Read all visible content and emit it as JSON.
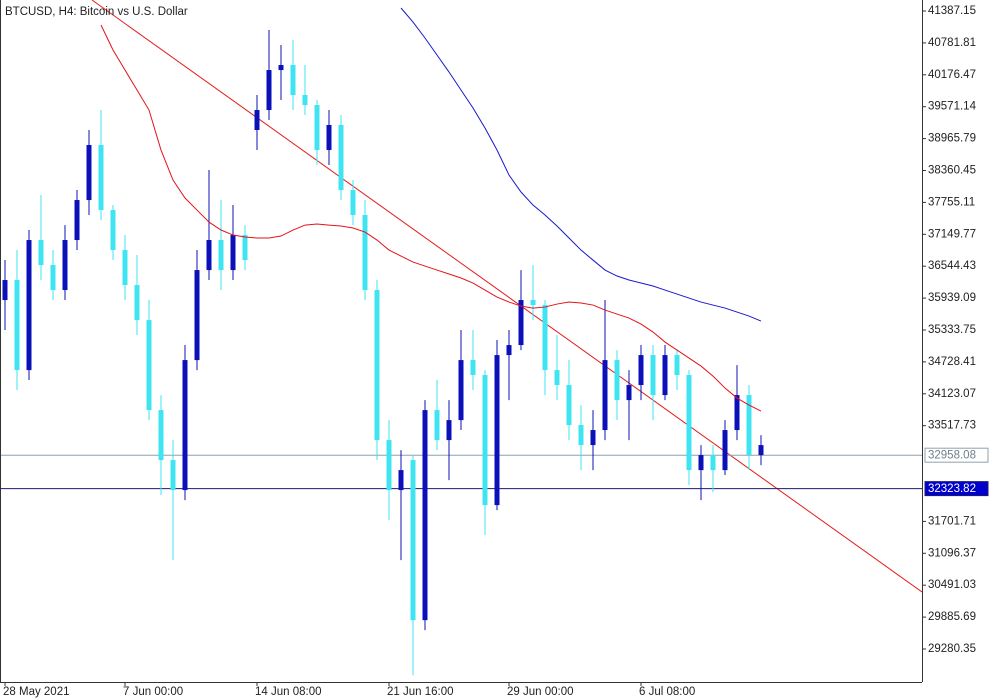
{
  "chart_data": {
    "type": "candlestick",
    "title": "BTCUSD, H4:  Bitcoin vs U.S. Dollar",
    "categories": [
      "28 May 2021",
      null,
      null,
      null,
      null,
      null,
      null,
      null,
      null,
      null,
      "7 Jun 00:00",
      null,
      null,
      null,
      null,
      null,
      null,
      null,
      null,
      null,
      null,
      "14 Jun 08:00",
      null,
      null,
      null,
      null,
      null,
      null,
      null,
      null,
      null,
      null,
      "21 Jun 16:00",
      null,
      null,
      null,
      null,
      null,
      null,
      null,
      null,
      null,
      "29 Jun 00:00",
      null,
      null,
      null,
      null,
      null,
      null,
      null,
      null,
      null,
      null,
      "6 Jul 08:00",
      null,
      null,
      null,
      null,
      null,
      null,
      null,
      null,
      null,
      null
    ],
    "open": [
      35902,
      36282,
      34573,
      37041,
      36566,
      36092,
      37041,
      37800,
      38844,
      37610,
      36851,
      36187,
      35522,
      33814,
      32865,
      32296,
      34763,
      36471,
      37041,
      36471,
      37136,
      39129,
      39508,
      40267,
      40362,
      39793,
      39603,
      38749,
      39224,
      37990,
      37515,
      36092,
      33245,
      32296,
      32865,
      29828,
      33814,
      33245,
      33624,
      34763,
      34479,
      32011,
      34858,
      35048,
      35902,
      35807,
      34573,
      34289,
      33530,
      33150,
      33435,
      34763,
      34004,
      34289,
      34858,
      34099,
      34858,
      34479,
      32675,
      32960,
      32675,
      33435,
      34099,
      32960
    ],
    "high": [
      36661,
      36851,
      37231,
      37895,
      36851,
      37325,
      37990,
      39129,
      39508,
      37705,
      37136,
      36756,
      35902,
      34099,
      33245,
      35048,
      36851,
      38369,
      37800,
      37705,
      37325,
      39793,
      41027,
      40742,
      40837,
      40362,
      39698,
      39508,
      39413,
      38180,
      37800,
      36282,
      33624,
      33055,
      32960,
      34004,
      34384,
      34004,
      35333,
      35333,
      34573,
      35143,
      35333,
      36471,
      36566,
      35902,
      35238,
      34763,
      33909,
      33814,
      35902,
      34953,
      34573,
      35048,
      35048,
      35048,
      34953,
      34573,
      33150,
      33150,
      33624,
      34668,
      34289,
      33340
    ],
    "low": [
      35333,
      34194,
      34384,
      36282,
      35902,
      35902,
      36851,
      37515,
      37420,
      36661,
      35902,
      35238,
      33624,
      32201,
      30967,
      32106,
      34573,
      36282,
      36092,
      36282,
      36471,
      38749,
      39318,
      39698,
      39508,
      39413,
      38464,
      38464,
      37800,
      37325,
      35902,
      32865,
      31726,
      30967,
      28785,
      29639,
      33055,
      32486,
      33435,
      34194,
      31442,
      31916,
      34004,
      34953,
      35522,
      34099,
      34004,
      33245,
      32675,
      32675,
      33245,
      33624,
      33245,
      34004,
      33624,
      34004,
      34194,
      32391,
      32106,
      32258,
      32581,
      33245,
      32675,
      32770
    ],
    "close": [
      36282,
      34573,
      37041,
      36566,
      36092,
      37041,
      37800,
      38844,
      37610,
      36851,
      36187,
      35522,
      33814,
      32865,
      32296,
      34763,
      36471,
      37041,
      36471,
      37136,
      36661,
      39508,
      40267,
      40362,
      39793,
      39603,
      38749,
      39224,
      37990,
      37515,
      36092,
      33245,
      32296,
      32675,
      29828,
      33814,
      33245,
      33624,
      34763,
      34479,
      32011,
      34858,
      35048,
      35902,
      35807,
      34573,
      34289,
      33530,
      33150,
      33435,
      34763,
      34004,
      34289,
      34858,
      34099,
      34858,
      34479,
      32675,
      32960,
      32675,
      33435,
      34099,
      32960,
      33150
    ],
    "up_color": "#0c10b8",
    "down_color": "#3ee4f2",
    "moving_averages": [
      {
        "color": "#e3121a",
        "values": [
          null,
          null,
          null,
          null,
          null,
          null,
          null,
          null,
          41121,
          40647,
          40267,
          39888,
          39508,
          38749,
          38180,
          37838,
          37610,
          37382,
          37231,
          37136,
          37098,
          37079,
          37079,
          37117,
          37231,
          37325,
          37345,
          37325,
          37307,
          37269,
          37193,
          37041,
          36851,
          36737,
          36623,
          36547,
          36471,
          36396,
          36320,
          36225,
          36092,
          35959,
          35864,
          35788,
          35750,
          35769,
          35826,
          35864,
          35845,
          35807,
          35712,
          35636,
          35560,
          35446,
          35295,
          35105,
          34953,
          34801,
          34649,
          34459,
          34232,
          34042,
          33909,
          33795
        ]
      },
      {
        "color": "#1818cc",
        "values": [
          null,
          null,
          null,
          null,
          null,
          null,
          null,
          null,
          null,
          null,
          null,
          null,
          null,
          null,
          null,
          null,
          null,
          null,
          null,
          null,
          null,
          null,
          null,
          null,
          null,
          null,
          null,
          null,
          null,
          null,
          null,
          null,
          null,
          41444,
          41178,
          40875,
          40552,
          40229,
          39888,
          39546,
          39167,
          38749,
          38274,
          37952,
          37705,
          37515,
          37307,
          37079,
          36851,
          36661,
          36471,
          36358,
          36282,
          36225,
          36168,
          36092,
          36016,
          35940,
          35864,
          35807,
          35750,
          35674,
          35598,
          35503
        ]
      }
    ],
    "price_lines": [
      {
        "value": 32958.08,
        "color": "#8ea0ad",
        "label_bg": "#ffffff",
        "label_color": "#6e7f8c"
      },
      {
        "value": 32323.82,
        "color": "#1c1c70",
        "label_bg": "#0000cc",
        "label_color": "#ffffff"
      }
    ],
    "ylim": [
      28654.1,
      41595.9
    ],
    "yticks": [
      41387.15,
      40781.81,
      40176.47,
      39571.14,
      38965.79,
      38360.45,
      37755.11,
      37149.77,
      36544.43,
      35939.09,
      35333.75,
      34728.41,
      34123.07,
      33517.73,
      31701.71,
      31096.37,
      30491.03,
      29885.69,
      29280.35
    ]
  }
}
